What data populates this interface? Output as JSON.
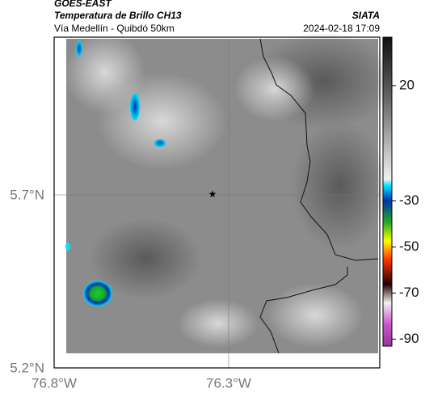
{
  "header": {
    "satellite": "GOES-EAST",
    "product": "Temperatura de Brillo CH13",
    "source": "SIATA",
    "subtitle": "Vía Medellín - Quibdó 50km",
    "datetime": "2024-02-18 17:09"
  },
  "axes": {
    "lat_labels": [
      "5.7°N",
      "5.2°N"
    ],
    "lon_labels": [
      "76.8°W",
      "76.3°W"
    ]
  },
  "colorbar": {
    "lim": [
      -93,
      41
    ],
    "ticks": [
      20,
      -30,
      -50,
      -70,
      -90
    ]
  }
}
